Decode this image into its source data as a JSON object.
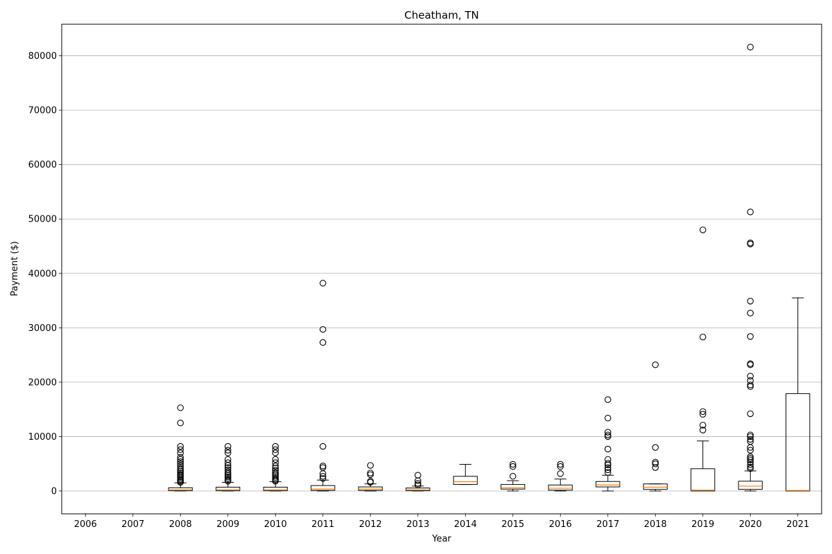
{
  "chart_data": {
    "type": "box",
    "title": "Cheatham, TN",
    "xlabel": "Year",
    "ylabel": "Payment ($)",
    "ylim": [
      -4200,
      85800
    ],
    "yticks": [
      0,
      10000,
      20000,
      30000,
      40000,
      50000,
      60000,
      70000,
      80000
    ],
    "grid": "y",
    "categories": [
      "2006",
      "2007",
      "2008",
      "2009",
      "2010",
      "2011",
      "2012",
      "2013",
      "2014",
      "2015",
      "2016",
      "2017",
      "2018",
      "2019",
      "2020",
      "2021"
    ],
    "boxes": [
      {
        "year": "2006",
        "empty": true
      },
      {
        "year": "2007",
        "empty": true
      },
      {
        "year": "2008",
        "whisker_low": 0,
        "q1": 50,
        "median": 250,
        "q3": 600,
        "whisker_high": 1500,
        "outliers": [
          1600,
          1800,
          2000,
          2200,
          2500,
          2800,
          3000,
          3300,
          3600,
          3900,
          4200,
          4600,
          5000,
          5400,
          5800,
          6200,
          7000,
          7600,
          8200,
          12500,
          15300
        ]
      },
      {
        "year": "2009",
        "whisker_low": 0,
        "q1": 50,
        "median": 250,
        "q3": 700,
        "whisker_high": 1600,
        "outliers": [
          1800,
          2000,
          2300,
          2600,
          2900,
          3200,
          3500,
          3900,
          4300,
          4700,
          5200,
          5800,
          7000,
          7500,
          8200
        ]
      },
      {
        "year": "2010",
        "whisker_low": 0,
        "q1": 50,
        "median": 250,
        "q3": 700,
        "whisker_high": 1700,
        "outliers": [
          1800,
          2000,
          2200,
          2500,
          2800,
          3100,
          3400,
          3800,
          4200,
          4600,
          5200,
          5800,
          7000,
          7600,
          8200
        ]
      },
      {
        "year": "2011",
        "whisker_low": 0,
        "q1": 100,
        "median": 350,
        "q3": 1000,
        "whisker_high": 2000,
        "outliers": [
          2300,
          2700,
          3200,
          4300,
          4600,
          8200,
          27300,
          29700,
          38200
        ]
      },
      {
        "year": "2012",
        "whisker_low": 0,
        "q1": 100,
        "median": 350,
        "q3": 750,
        "whisker_high": 1300,
        "outliers": [
          1600,
          1800,
          3000,
          3300,
          4700
        ]
      },
      {
        "year": "2013",
        "whisker_low": 0,
        "q1": 50,
        "median": 250,
        "q3": 550,
        "whisker_high": 900,
        "outliers": [
          1100,
          1400,
          1900,
          2900
        ]
      },
      {
        "year": "2014",
        "whisker_low": 1200,
        "q1": 1200,
        "median": 1700,
        "q3": 2700,
        "whisker_high": 4900,
        "outliers": []
      },
      {
        "year": "2015",
        "whisker_low": 0,
        "q1": 350,
        "median": 600,
        "q3": 1200,
        "whisker_high": 1900,
        "outliers": [
          2700,
          4500,
          4900
        ]
      },
      {
        "year": "2016",
        "whisker_low": 0,
        "q1": 150,
        "median": 500,
        "q3": 1100,
        "whisker_high": 2200,
        "outliers": [
          3200,
          4500,
          4900
        ]
      },
      {
        "year": "2017",
        "whisker_low": 0,
        "q1": 750,
        "median": 1100,
        "q3": 1750,
        "whisker_high": 2900,
        "outliers": [
          3400,
          3900,
          4300,
          4800,
          5100,
          5800,
          7700,
          10000,
          10300,
          10800,
          13400,
          16800
        ]
      },
      {
        "year": "2018",
        "whisker_low": 0,
        "q1": 300,
        "median": 700,
        "q3": 1300,
        "whisker_high": 1300,
        "outliers": [
          4300,
          5000,
          5300,
          8000,
          23200
        ]
      },
      {
        "year": "2019",
        "whisker_low": 0,
        "q1": 0,
        "median": 150,
        "q3": 4100,
        "whisker_high": 9200,
        "outliers": [
          11200,
          12100,
          14100,
          14600,
          28300,
          48000
        ]
      },
      {
        "year": "2020",
        "whisker_low": 0,
        "q1": 300,
        "median": 900,
        "q3": 1800,
        "whisker_high": 3700,
        "outliers": [
          4100,
          4400,
          4800,
          5300,
          5700,
          6000,
          6300,
          7500,
          8000,
          9100,
          9500,
          10000,
          10300,
          14200,
          19200,
          19500,
          20300,
          21100,
          23200,
          23400,
          28400,
          32700,
          34900,
          45400,
          45600,
          51300,
          81600
        ]
      },
      {
        "year": "2021",
        "whisker_low": 0,
        "q1": 0,
        "median": 100,
        "q3": 17900,
        "whisker_high": 35500,
        "outliers": []
      }
    ]
  }
}
